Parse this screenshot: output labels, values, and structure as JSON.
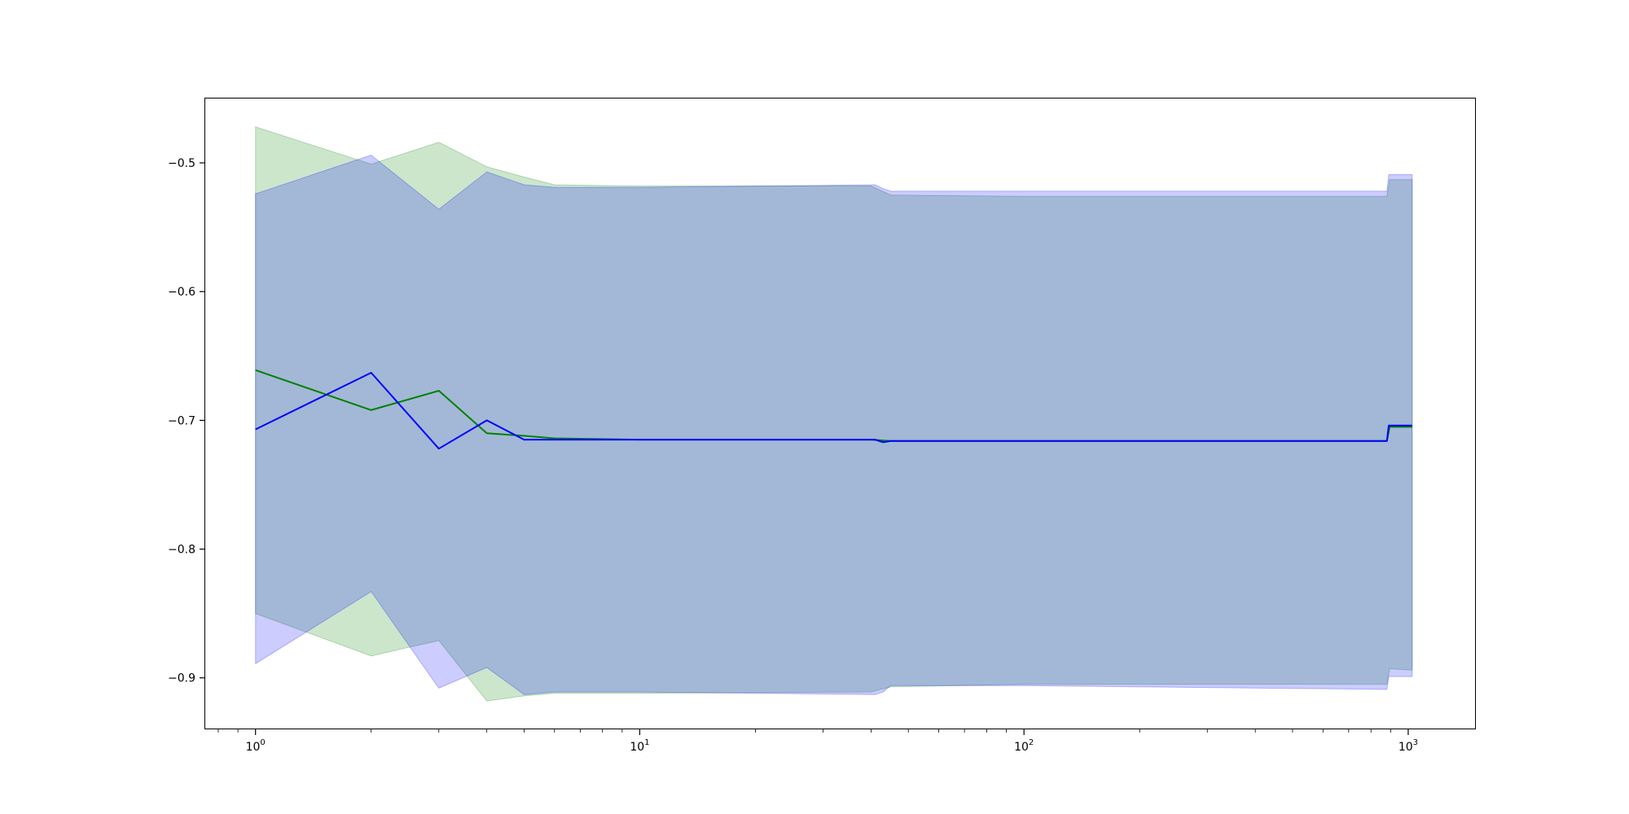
{
  "chart_data": {
    "type": "line",
    "title": "",
    "xlabel": "",
    "ylabel": "",
    "x_scale": "log",
    "xlim": [
      0.74,
      1500
    ],
    "ylim": [
      -0.94,
      -0.45
    ],
    "grid": false,
    "legend": "none",
    "x_ticks": [
      {
        "value": 1,
        "base": "10",
        "exp": "0"
      },
      {
        "value": 10,
        "base": "10",
        "exp": "1"
      },
      {
        "value": 100,
        "base": "10",
        "exp": "2"
      },
      {
        "value": 1000,
        "base": "10",
        "exp": "3"
      }
    ],
    "y_ticks": [
      {
        "value": -0.5,
        "label": "−0.5"
      },
      {
        "value": -0.6,
        "label": "−0.6"
      },
      {
        "value": -0.7,
        "label": "−0.7"
      },
      {
        "value": -0.8,
        "label": "−0.8"
      },
      {
        "value": -0.9,
        "label": "−0.9"
      }
    ],
    "series": [
      {
        "color": "#008000",
        "band_color": "#008000",
        "band_opacity": 0.2,
        "points": [
          {
            "x": 1,
            "y": -0.661,
            "lo": -0.85,
            "hi": -0.472
          },
          {
            "x": 2,
            "y": -0.692,
            "lo": -0.883,
            "hi": -0.501
          },
          {
            "x": 3,
            "y": -0.677,
            "lo": -0.871,
            "hi": -0.484
          },
          {
            "x": 4,
            "y": -0.71,
            "lo": -0.918,
            "hi": -0.503
          },
          {
            "x": 5,
            "y": -0.712,
            "lo": -0.914,
            "hi": -0.511
          },
          {
            "x": 6,
            "y": -0.714,
            "lo": -0.912,
            "hi": -0.517
          },
          {
            "x": 10,
            "y": -0.715,
            "lo": -0.912,
            "hi": -0.518
          },
          {
            "x": 40,
            "y": -0.715,
            "lo": -0.911,
            "hi": -0.518
          },
          {
            "x": 45,
            "y": -0.716,
            "lo": -0.907,
            "hi": -0.525
          },
          {
            "x": 100,
            "y": -0.716,
            "lo": -0.905,
            "hi": -0.526
          },
          {
            "x": 880,
            "y": -0.716,
            "lo": -0.905,
            "hi": -0.526
          },
          {
            "x": 895,
            "y": -0.705,
            "lo": -0.893,
            "hi": -0.513
          },
          {
            "x": 1024,
            "y": -0.705,
            "lo": -0.894,
            "hi": -0.513
          }
        ]
      },
      {
        "color": "#0000ff",
        "band_color": "#0000ff",
        "band_opacity": 0.2,
        "points": [
          {
            "x": 1,
            "y": -0.707,
            "lo": -0.889,
            "hi": -0.524
          },
          {
            "x": 2,
            "y": -0.663,
            "lo": -0.833,
            "hi": -0.494
          },
          {
            "x": 3,
            "y": -0.722,
            "lo": -0.908,
            "hi": -0.536
          },
          {
            "x": 4,
            "y": -0.7,
            "lo": -0.892,
            "hi": -0.507
          },
          {
            "x": 5,
            "y": -0.715,
            "lo": -0.913,
            "hi": -0.517
          },
          {
            "x": 6,
            "y": -0.715,
            "lo": -0.911,
            "hi": -0.519
          },
          {
            "x": 10,
            "y": -0.715,
            "lo": -0.911,
            "hi": -0.519
          },
          {
            "x": 41,
            "y": -0.715,
            "lo": -0.913,
            "hi": -0.517
          },
          {
            "x": 43,
            "y": -0.717,
            "lo": -0.911,
            "hi": -0.52
          },
          {
            "x": 45,
            "y": -0.716,
            "lo": -0.906,
            "hi": -0.522
          },
          {
            "x": 100,
            "y": -0.716,
            "lo": -0.906,
            "hi": -0.522
          },
          {
            "x": 880,
            "y": -0.716,
            "lo": -0.909,
            "hi": -0.522
          },
          {
            "x": 890,
            "y": -0.704,
            "lo": -0.899,
            "hi": -0.509
          },
          {
            "x": 1024,
            "y": -0.704,
            "lo": -0.899,
            "hi": -0.509
          }
        ]
      }
    ]
  }
}
